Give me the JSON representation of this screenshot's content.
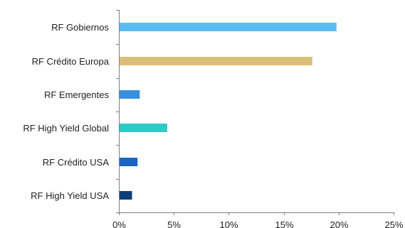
{
  "chart_data": {
    "type": "bar",
    "orientation": "horizontal",
    "title": "",
    "xlabel": "",
    "ylabel": "",
    "categories": [
      "RF Gobiernos",
      "RF Crédito Europa",
      "RF Emergentes",
      "RF High Yield Global",
      "RF Crédito USA",
      "RF High Yield USA"
    ],
    "values": [
      19.8,
      17.6,
      1.9,
      4.4,
      1.7,
      1.2
    ],
    "colors": [
      "#5bbcf2",
      "#d9be77",
      "#3a8fdc",
      "#2ec9c4",
      "#1a66c2",
      "#0f3f78"
    ],
    "xlim": [
      0,
      25
    ],
    "x_ticks": [
      0,
      5,
      10,
      15,
      20,
      25
    ],
    "x_tick_labels": [
      "0%",
      "5%",
      "10%",
      "15%",
      "20%",
      "25%"
    ],
    "grid": false,
    "legend": "none"
  }
}
